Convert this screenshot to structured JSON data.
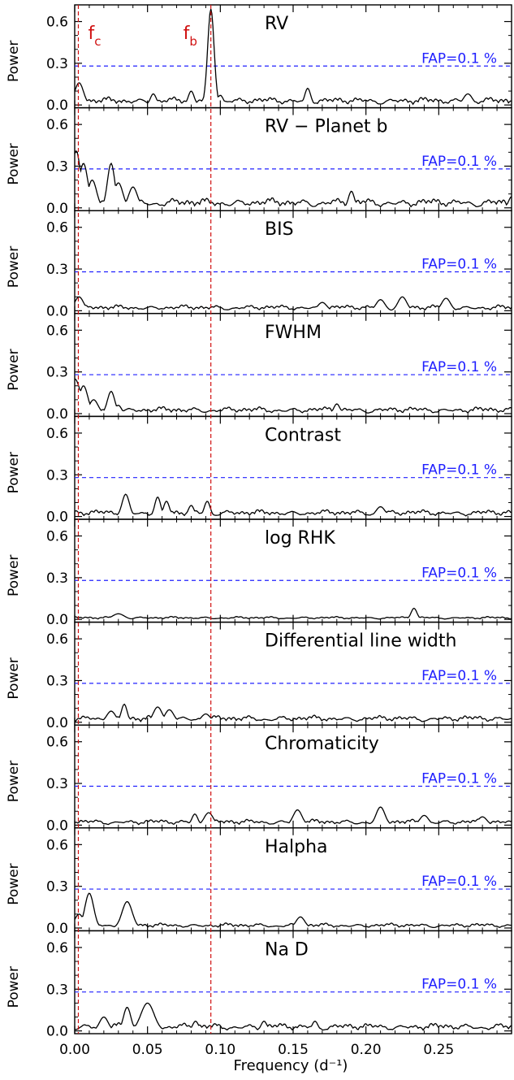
{
  "chart_data": {
    "type": "line",
    "xlabel": "Frequency (d⁻¹)",
    "ylabel": "Power",
    "xlim": [
      0.0,
      0.3
    ],
    "ylim": [
      -0.02,
      0.72
    ],
    "xticks": [
      {
        "value": 0.0,
        "label": "0.00"
      },
      {
        "value": 0.05,
        "label": "0.05"
      },
      {
        "value": 0.1,
        "label": "0.10"
      },
      {
        "value": 0.15,
        "label": "0.15"
      },
      {
        "value": 0.2,
        "label": "0.20"
      },
      {
        "value": 0.25,
        "label": "0.25"
      }
    ],
    "yticks": [
      {
        "value": 0.0,
        "label": "0.0"
      },
      {
        "value": 0.3,
        "label": "0.3"
      },
      {
        "value": 0.6,
        "label": "0.6"
      }
    ],
    "fap_level": 0.28,
    "fap_label": "FAP=0.1 %",
    "markers": [
      {
        "name": "f",
        "sub": "c",
        "x": 0.0025
      },
      {
        "name": "f",
        "sub": "b",
        "x": 0.0935
      }
    ],
    "colors": {
      "fap": "#2020ff",
      "marker": "#d01010",
      "line": "#000000"
    },
    "panels": [
      {
        "title": "RV",
        "peaks": [
          [
            0.0935,
            0.69,
            0.0022
          ],
          [
            0.003,
            0.16,
            0.003
          ],
          [
            0.08,
            0.1,
            0.002
          ],
          [
            0.054,
            0.08,
            0.002
          ],
          [
            0.16,
            0.12,
            0.002
          ],
          [
            0.1,
            0.07,
            0.002
          ],
          [
            0.27,
            0.08,
            0.003
          ]
        ],
        "base": 0.04,
        "seed": 11
      },
      {
        "title": "RV − Planet b",
        "peaks": [
          [
            0.001,
            0.41,
            0.003
          ],
          [
            0.006,
            0.32,
            0.003
          ],
          [
            0.012,
            0.2,
            0.003
          ],
          [
            0.025,
            0.32,
            0.0025
          ],
          [
            0.03,
            0.18,
            0.003
          ],
          [
            0.04,
            0.15,
            0.003
          ],
          [
            0.19,
            0.12,
            0.002
          ],
          [
            0.3,
            0.08,
            0.002
          ]
        ],
        "base": 0.05,
        "seed": 23
      },
      {
        "title": "BIS",
        "peaks": [
          [
            0.003,
            0.1,
            0.003
          ],
          [
            0.21,
            0.08,
            0.003
          ],
          [
            0.225,
            0.1,
            0.003
          ],
          [
            0.255,
            0.09,
            0.003
          ],
          [
            0.17,
            0.06,
            0.003
          ]
        ],
        "base": 0.03,
        "seed": 37
      },
      {
        "title": "FWHM",
        "peaks": [
          [
            0.0,
            0.25,
            0.004
          ],
          [
            0.006,
            0.2,
            0.003
          ],
          [
            0.013,
            0.1,
            0.003
          ],
          [
            0.025,
            0.16,
            0.0025
          ],
          [
            0.03,
            0.06,
            0.002
          ],
          [
            0.18,
            0.07,
            0.002
          ]
        ],
        "base": 0.035,
        "seed": 41
      },
      {
        "title": "Contrast",
        "peaks": [
          [
            0.035,
            0.16,
            0.0025
          ],
          [
            0.057,
            0.14,
            0.002
          ],
          [
            0.063,
            0.11,
            0.002
          ],
          [
            0.091,
            0.11,
            0.002
          ],
          [
            0.08,
            0.08,
            0.002
          ],
          [
            0.21,
            0.07,
            0.003
          ]
        ],
        "base": 0.035,
        "seed": 53
      },
      {
        "title": "log RHK",
        "peaks": [
          [
            0.233,
            0.08,
            0.002
          ],
          [
            0.03,
            0.04,
            0.004
          ]
        ],
        "base": 0.015,
        "seed": 67
      },
      {
        "title": "Differential line width",
        "peaks": [
          [
            0.034,
            0.13,
            0.002
          ],
          [
            0.057,
            0.11,
            0.003
          ],
          [
            0.065,
            0.09,
            0.003
          ],
          [
            0.025,
            0.08,
            0.003
          ],
          [
            0.09,
            0.06,
            0.003
          ]
        ],
        "base": 0.035,
        "seed": 71
      },
      {
        "title": "Chromaticity",
        "peaks": [
          [
            0.153,
            0.11,
            0.003
          ],
          [
            0.21,
            0.13,
            0.003
          ],
          [
            0.092,
            0.09,
            0.003
          ],
          [
            0.0825,
            0.08,
            0.002
          ],
          [
            0.24,
            0.07,
            0.003
          ],
          [
            0.28,
            0.06,
            0.003
          ]
        ],
        "base": 0.03,
        "seed": 83
      },
      {
        "title": "Halpha",
        "peaks": [
          [
            0.01,
            0.25,
            0.003
          ],
          [
            0.036,
            0.19,
            0.0035
          ],
          [
            0.003,
            0.1,
            0.003
          ],
          [
            0.155,
            0.08,
            0.003
          ]
        ],
        "base": 0.025,
        "seed": 97
      },
      {
        "title": "Na D",
        "peaks": [
          [
            0.05,
            0.2,
            0.0045
          ],
          [
            0.036,
            0.17,
            0.0025
          ],
          [
            0.02,
            0.1,
            0.003
          ],
          [
            0.083,
            0.07,
            0.002
          ],
          [
            0.13,
            0.07,
            0.002
          ],
          [
            0.165,
            0.07,
            0.002
          ]
        ],
        "base": 0.04,
        "seed": 103
      }
    ]
  }
}
